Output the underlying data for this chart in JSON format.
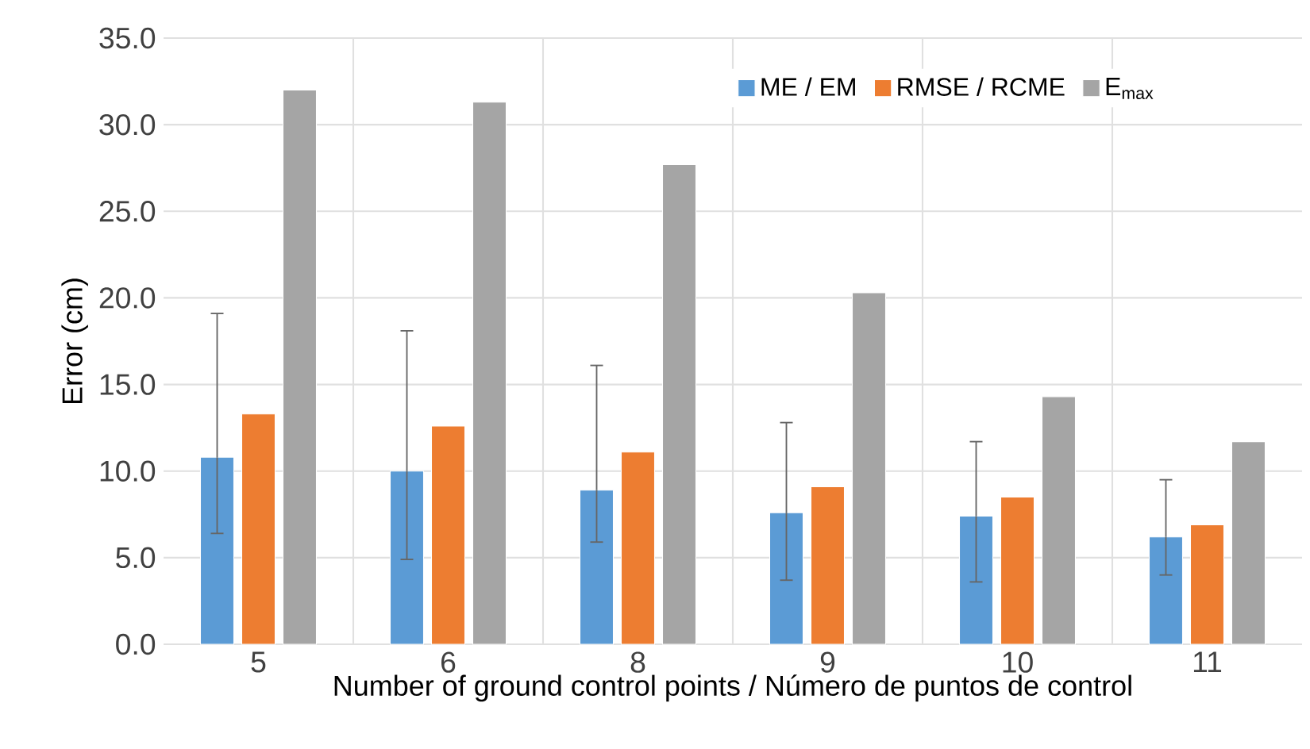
{
  "chart_data": {
    "type": "bar",
    "xlabel": "Number of ground control points / Número de puntos de control",
    "ylabel": "Error (cm)",
    "categories": [
      "5",
      "6",
      "8",
      "9",
      "10",
      "11"
    ],
    "series": [
      {
        "name": "ME / EM",
        "color": "#5b9bd5",
        "values": [
          10.8,
          10.0,
          8.9,
          7.6,
          7.4,
          6.2
        ],
        "errors": [
          [
            6.4,
            19.1
          ],
          [
            4.9,
            18.1
          ],
          [
            5.9,
            16.1
          ],
          [
            3.7,
            12.8
          ],
          [
            3.6,
            11.7
          ],
          [
            4.0,
            9.5
          ]
        ]
      },
      {
        "name": "RMSE / RCME",
        "color": "#ed7d31",
        "values": [
          13.3,
          12.6,
          11.1,
          9.1,
          8.5,
          6.9
        ]
      },
      {
        "name": "E$_{max}$",
        "color": "#a5a5a5",
        "values": [
          32.0,
          31.3,
          27.7,
          20.3,
          14.3,
          11.7
        ]
      }
    ],
    "ylim": [
      0,
      35
    ],
    "yticks": [
      {
        "value": 0,
        "label": "0.0"
      },
      {
        "value": 5,
        "label": "5.0"
      },
      {
        "value": 10,
        "label": "10.0"
      },
      {
        "value": 15,
        "label": "15.0"
      },
      {
        "value": 20,
        "label": "20.0"
      },
      {
        "value": 25,
        "label": "25.0"
      },
      {
        "value": 30,
        "label": "30.0"
      },
      {
        "value": 35,
        "label": "35.0"
      }
    ],
    "grid": true,
    "legend": "top right"
  }
}
